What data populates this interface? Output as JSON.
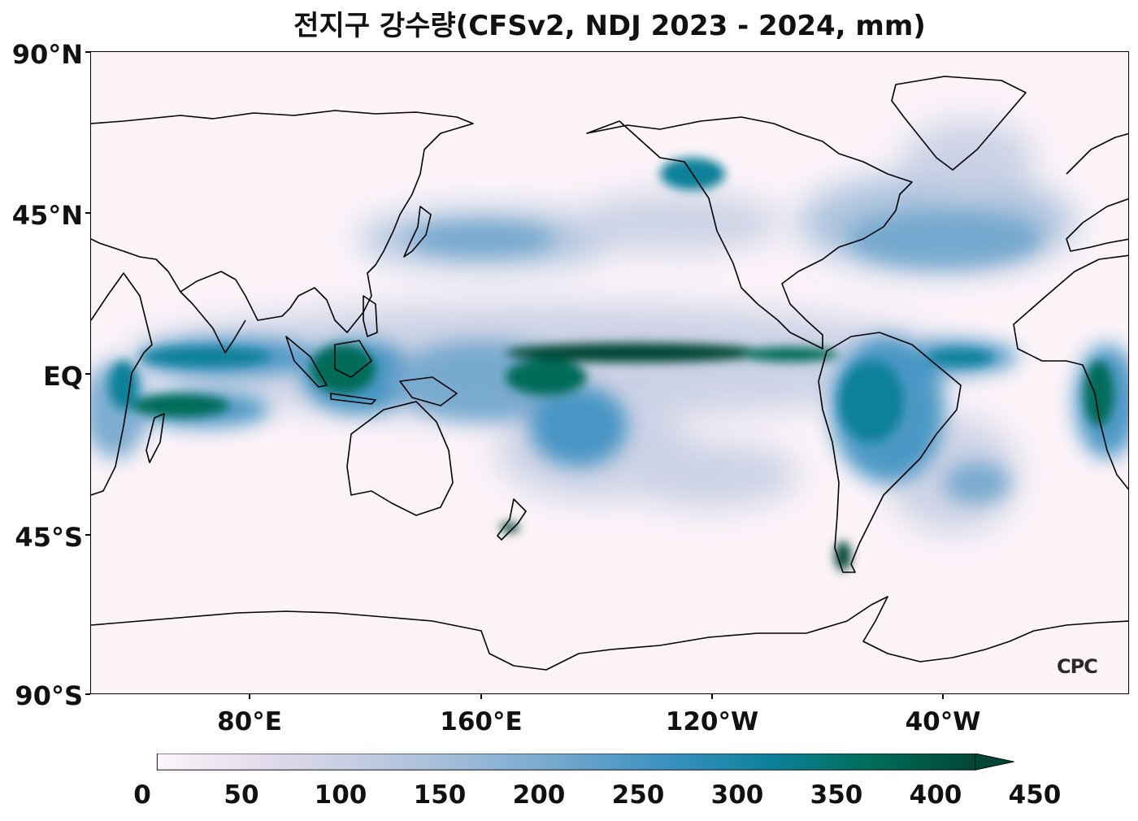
{
  "title": "전지구 강수량(CFSv2, NDJ 2023 - 2024, mm)",
  "logo": "CPC",
  "map": {
    "lat_labels": [
      "90°N",
      "45°N",
      "EQ",
      "45°S",
      "90°S"
    ],
    "lon_labels": [
      "80°E",
      "160°E",
      "120°W",
      "40°W"
    ],
    "colors": {
      "background": "#fbf3f8",
      "coast": "#000000"
    }
  },
  "colorbar": {
    "labels": [
      "0",
      "50",
      "100",
      "150",
      "200",
      "250",
      "300",
      "350",
      "400",
      "450"
    ],
    "stops": [
      "#fcf5fa",
      "#e4dcec",
      "#c3cce2",
      "#9cbad8",
      "#6fa6cd",
      "#3a90c1",
      "#0c819a",
      "#016c59",
      "#014636"
    ]
  }
}
